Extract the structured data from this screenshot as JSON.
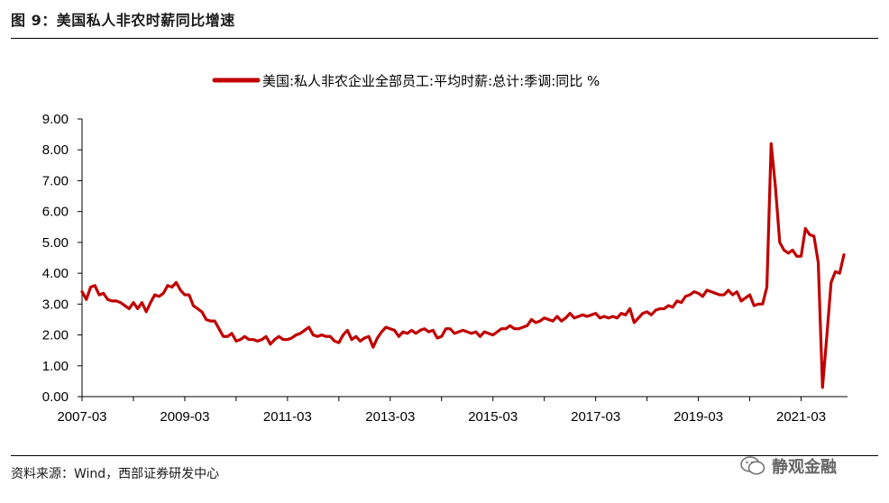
{
  "figure": {
    "title": "图 9：美国私人非农时薪同比增速",
    "source": "资料来源：Wind，西部证券研发中心",
    "watermark": "静观金融"
  },
  "chart_data": {
    "type": "line",
    "title": "",
    "xlabel": "",
    "ylabel": "",
    "series": [
      {
        "name": "美国:私人非农企业全部员工:平均时薪:总计:季调:同比 %",
        "color": "#C00000",
        "start": "2007-03",
        "values": [
          3.4,
          3.15,
          3.55,
          3.6,
          3.3,
          3.35,
          3.15,
          3.1,
          3.1,
          3.05,
          2.95,
          2.85,
          3.05,
          2.85,
          3.05,
          2.75,
          3.05,
          3.3,
          3.25,
          3.35,
          3.6,
          3.55,
          3.7,
          3.45,
          3.3,
          3.3,
          2.95,
          2.85,
          2.75,
          2.5,
          2.45,
          2.45,
          2.2,
          1.95,
          1.95,
          2.05,
          1.8,
          1.85,
          1.95,
          1.85,
          1.85,
          1.8,
          1.85,
          1.95,
          1.7,
          1.85,
          1.95,
          1.85,
          1.85,
          1.9,
          2.0,
          2.05,
          2.15,
          2.25,
          2.0,
          1.95,
          2.0,
          1.95,
          1.95,
          1.8,
          1.75,
          2.0,
          2.15,
          1.85,
          1.95,
          1.8,
          1.9,
          1.95,
          1.6,
          1.9,
          2.1,
          2.25,
          2.2,
          2.15,
          1.95,
          2.1,
          2.05,
          2.15,
          2.05,
          2.15,
          2.2,
          2.1,
          2.15,
          1.9,
          1.95,
          2.2,
          2.2,
          2.05,
          2.1,
          2.15,
          2.1,
          2.05,
          2.1,
          1.95,
          2.1,
          2.05,
          2.0,
          2.1,
          2.2,
          2.2,
          2.3,
          2.2,
          2.2,
          2.25,
          2.3,
          2.5,
          2.4,
          2.45,
          2.55,
          2.5,
          2.45,
          2.6,
          2.45,
          2.55,
          2.7,
          2.55,
          2.6,
          2.65,
          2.6,
          2.65,
          2.7,
          2.55,
          2.6,
          2.55,
          2.6,
          2.55,
          2.7,
          2.65,
          2.85,
          2.4,
          2.55,
          2.7,
          2.75,
          2.65,
          2.8,
          2.85,
          2.85,
          2.95,
          2.9,
          3.1,
          3.05,
          3.25,
          3.3,
          3.4,
          3.35,
          3.25,
          3.45,
          3.4,
          3.35,
          3.3,
          3.3,
          3.45,
          3.3,
          3.4,
          3.1,
          3.2,
          3.3,
          2.95,
          3.0,
          3.0,
          3.55,
          8.2,
          6.8,
          5.0,
          4.75,
          4.65,
          4.75,
          4.55,
          4.55,
          5.45,
          5.25,
          5.2,
          4.35,
          0.3,
          1.95,
          3.7,
          4.05,
          4.0,
          4.6
        ]
      }
    ],
    "x_tick_labels": [
      "2007-03",
      "2009-03",
      "2011-03",
      "2013-03",
      "2015-03",
      "2017-03",
      "2019-03",
      "2021-03"
    ],
    "y_tick_labels": [
      "0.00",
      "1.00",
      "2.00",
      "3.00",
      "4.00",
      "5.00",
      "6.00",
      "7.00",
      "8.00",
      "9.00"
    ],
    "ylim": [
      0,
      9
    ],
    "grid": false,
    "legend_position": "top"
  }
}
